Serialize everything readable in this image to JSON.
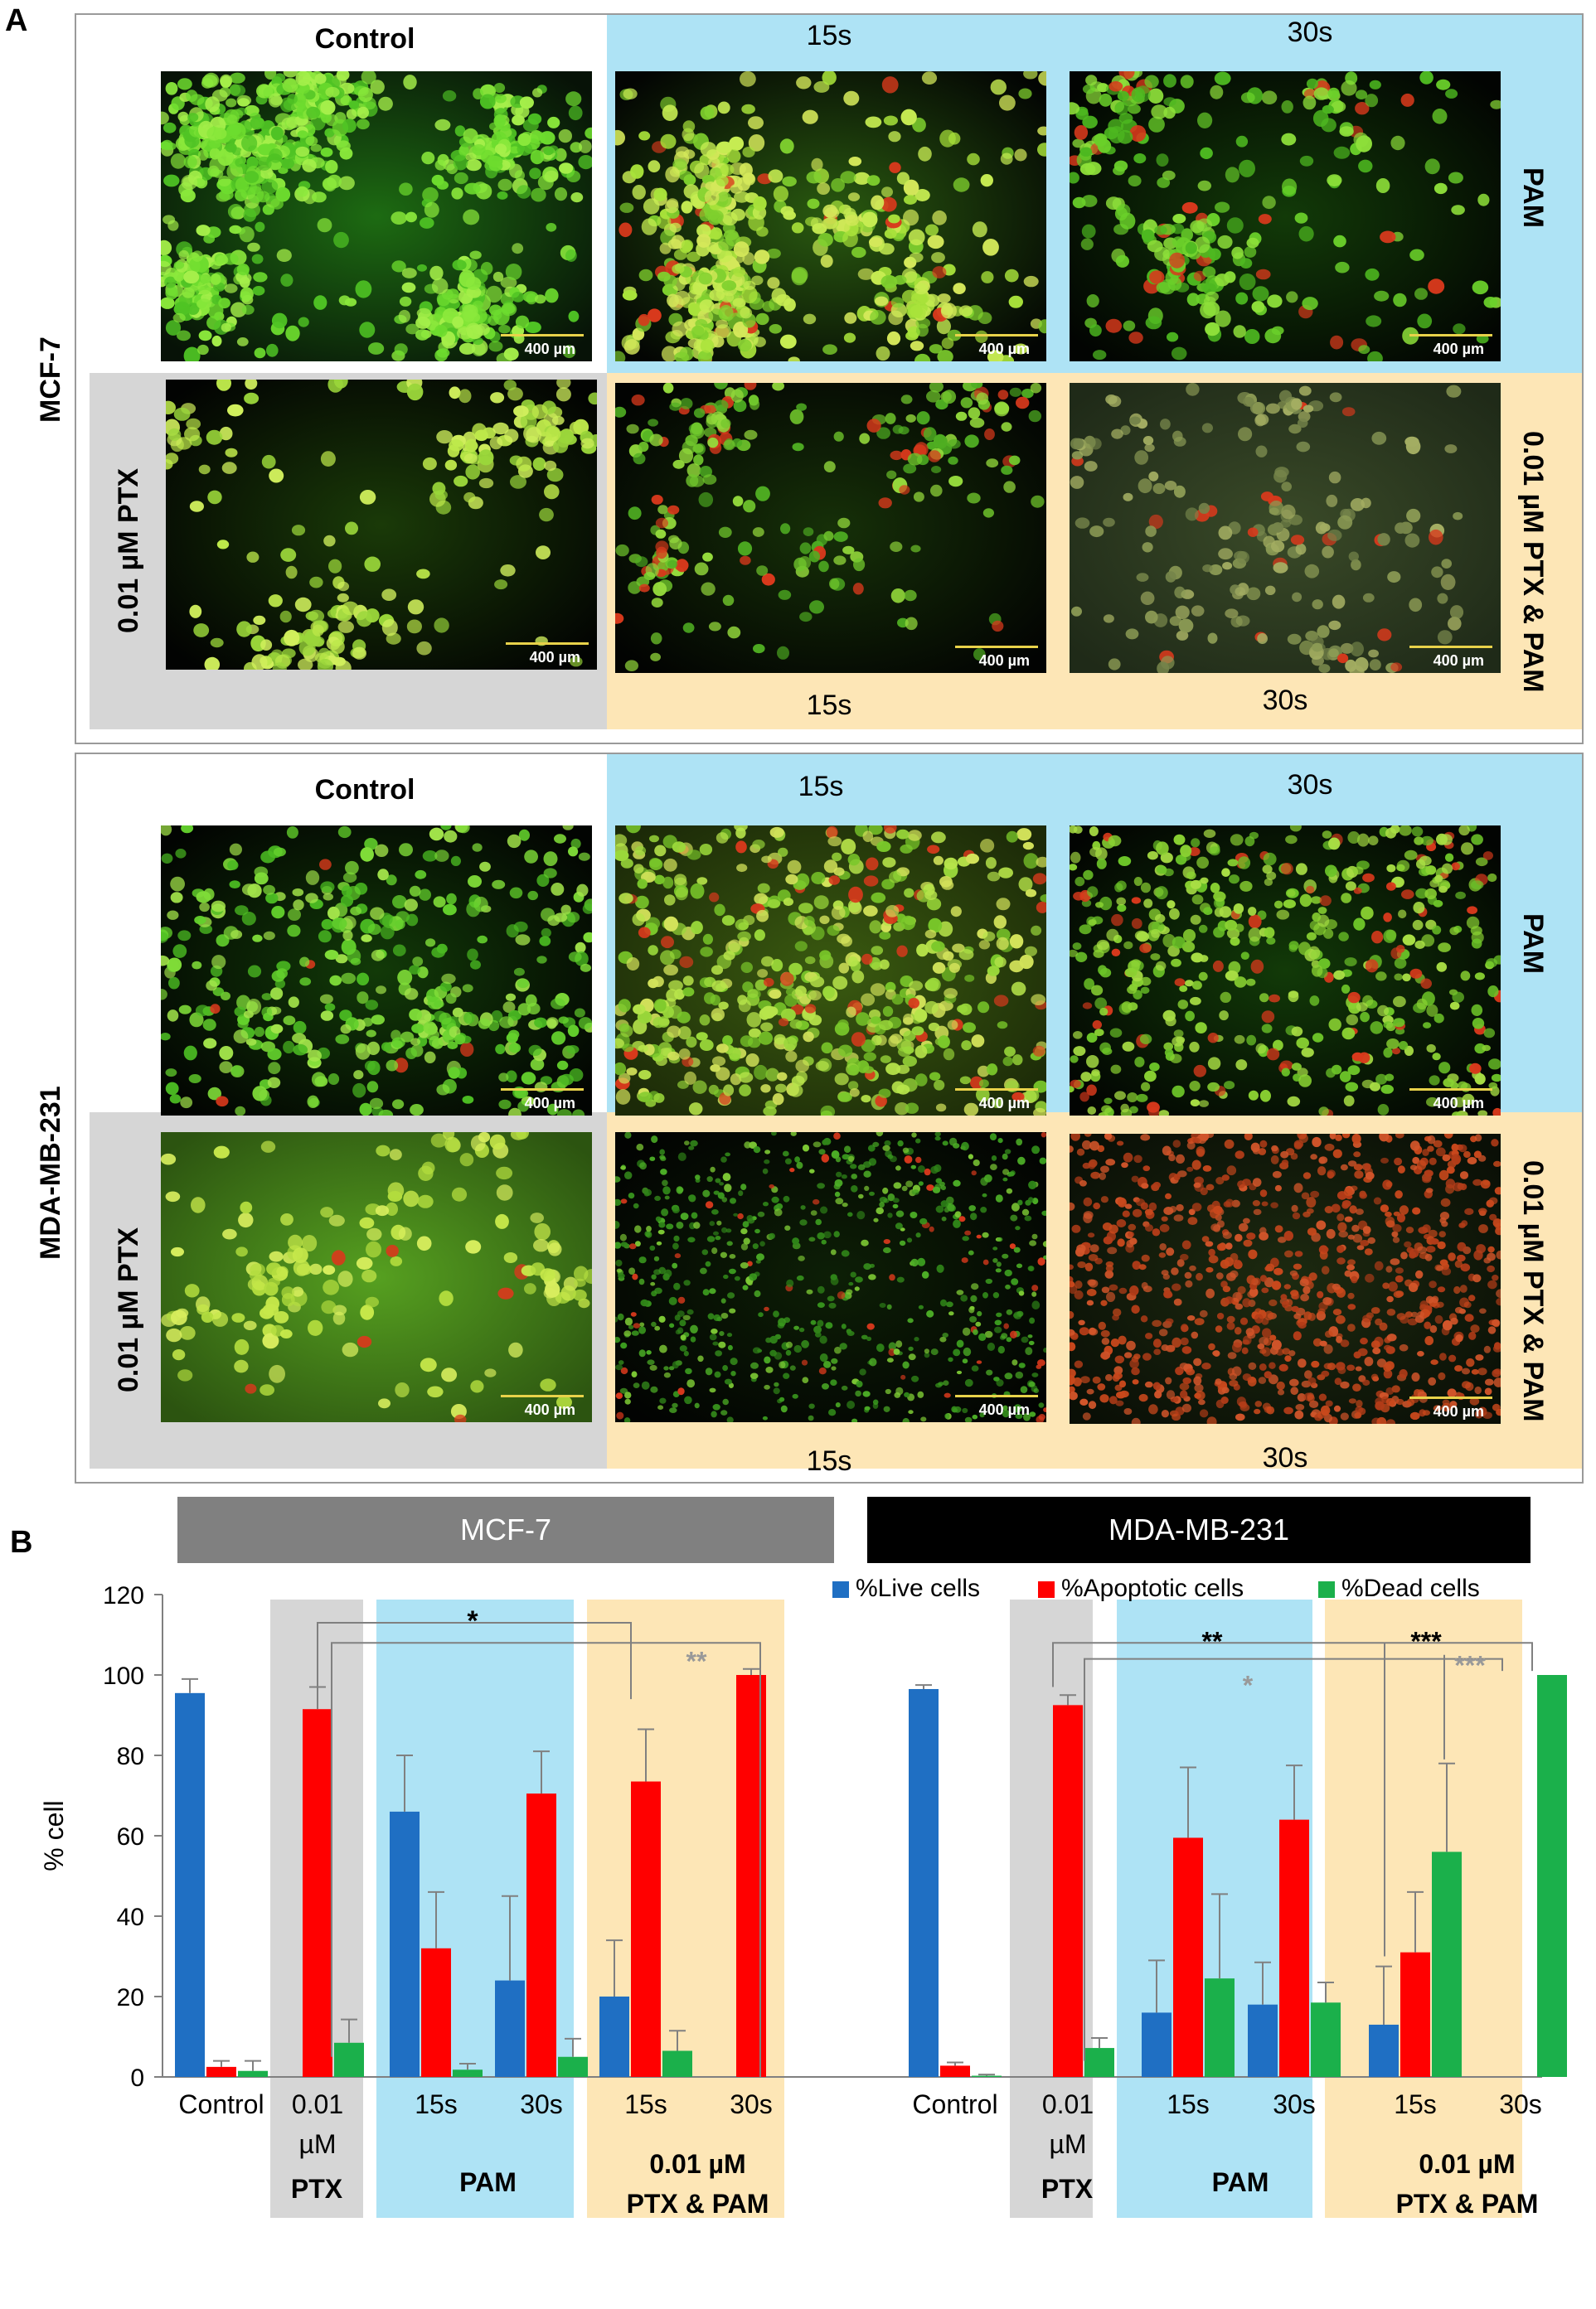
{
  "figure": {
    "panel_a_label": "A",
    "panel_b_label": "B",
    "scale_bar": "400 µm"
  },
  "micrographs": {
    "mcf7": {
      "cell_line": "MCF-7",
      "top_header": "Control",
      "t15": "15s",
      "t30": "30s",
      "pam_label": "PAM",
      "ptx_label": "0.01 µM PTX",
      "combo_label": "0.01 µM PTX & PAM",
      "bottom_t15": "15s",
      "bottom_t30": "30s"
    },
    "mda": {
      "cell_line": "MDA-MB-231",
      "top_header": "Control",
      "t15": "15s",
      "t30": "30s",
      "pam_label": "PAM",
      "ptx_label": "0.01 µM PTX",
      "combo_label": "0.01 µM PTX & PAM",
      "bottom_t15": "15s",
      "bottom_t30": "30s"
    }
  },
  "chart_data": {
    "type": "bar",
    "ylabel": "% cell",
    "ylim": [
      0,
      120
    ],
    "yticks": [
      0,
      20,
      40,
      60,
      80,
      100,
      120
    ],
    "grid": false,
    "legend_position": "top-right",
    "group_titles": [
      "MCF-7",
      "MDA-MB-231"
    ],
    "categories": [
      "Control",
      "0.01 µM",
      "15s",
      "30s",
      "15s",
      "30s"
    ],
    "category_lines": [
      [
        "Control"
      ],
      [
        "0.01",
        "µM"
      ],
      [
        "15s"
      ],
      [
        "30s"
      ],
      [
        "15s"
      ],
      [
        "30s"
      ]
    ],
    "treatment_labels": [
      "PTX",
      "PAM",
      "0.01 µM",
      "PTX & PAM"
    ],
    "series": [
      {
        "name": "%Live cells",
        "color": "#1f6fc3"
      },
      {
        "name": "%Apoptotic cells",
        "color": "#ff0000"
      },
      {
        "name": "%Dead cells",
        "color": "#1bb04b"
      }
    ],
    "groups": [
      {
        "name": "MCF-7",
        "values": [
          [
            95.5,
            2.5,
            1.5
          ],
          [
            0,
            91.5,
            8.5
          ],
          [
            66,
            32,
            1.8
          ],
          [
            24,
            70.5,
            5
          ],
          [
            20,
            73.5,
            6.5
          ],
          [
            0,
            100,
            0
          ]
        ],
        "errors": [
          [
            3.5,
            1.5,
            2.5
          ],
          [
            0,
            5.5,
            5.8
          ],
          [
            14,
            14,
            1.5
          ],
          [
            21,
            10.5,
            4.5
          ],
          [
            14,
            13,
            5
          ],
          [
            0,
            1.5,
            0
          ]
        ],
        "significance": [
          {
            "text": "*",
            "color": "#000000"
          },
          {
            "text": "**",
            "color": "#999999"
          }
        ]
      },
      {
        "name": "MDA-MB-231",
        "values": [
          [
            96.5,
            2.8,
            0.3
          ],
          [
            0,
            92.5,
            7.2
          ],
          [
            16,
            59.5,
            24.5
          ],
          [
            18,
            64,
            18.5
          ],
          [
            13,
            31,
            56
          ],
          [
            0,
            0,
            100
          ]
        ],
        "errors": [
          [
            1,
            0.8,
            0.3
          ],
          [
            0,
            2.5,
            2.5
          ],
          [
            13,
            17.5,
            21
          ],
          [
            10.5,
            13.5,
            5
          ],
          [
            14.5,
            15,
            22
          ],
          [
            0,
            0,
            0
          ]
        ],
        "significance": [
          {
            "text": "**",
            "color": "#000000"
          },
          {
            "text": "*",
            "color": "#999999"
          },
          {
            "text": "***",
            "color": "#000000"
          },
          {
            "text": "***",
            "color": "#999999"
          }
        ]
      }
    ]
  }
}
